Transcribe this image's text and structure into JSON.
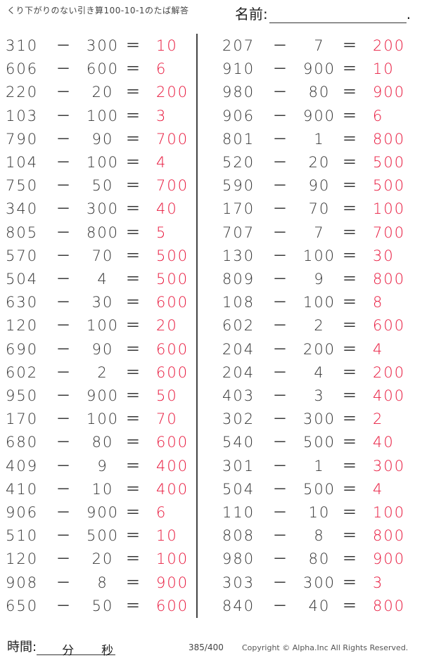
{
  "header": {
    "title": "くり下がりのない引き算100-10-1のたば解答",
    "name_label": "名前:",
    "name_dot": "."
  },
  "operator": "－",
  "equals": "＝",
  "left": [
    [
      "310",
      "300",
      "10"
    ],
    [
      "606",
      "600",
      "6"
    ],
    [
      "220",
      "20",
      "200"
    ],
    [
      "103",
      "100",
      "3"
    ],
    [
      "790",
      "90",
      "700"
    ],
    [
      "104",
      "100",
      "4"
    ],
    [
      "750",
      "50",
      "700"
    ],
    [
      "340",
      "300",
      "40"
    ],
    [
      "805",
      "800",
      "5"
    ],
    [
      "570",
      "70",
      "500"
    ],
    [
      "504",
      "4",
      "500"
    ],
    [
      "630",
      "30",
      "600"
    ],
    [
      "120",
      "100",
      "20"
    ],
    [
      "690",
      "90",
      "600"
    ],
    [
      "602",
      "2",
      "600"
    ],
    [
      "950",
      "900",
      "50"
    ],
    [
      "170",
      "100",
      "70"
    ],
    [
      "680",
      "80",
      "600"
    ],
    [
      "409",
      "9",
      "400"
    ],
    [
      "410",
      "10",
      "400"
    ],
    [
      "906",
      "900",
      "6"
    ],
    [
      "510",
      "500",
      "10"
    ],
    [
      "120",
      "20",
      "100"
    ],
    [
      "908",
      "8",
      "900"
    ],
    [
      "650",
      "50",
      "600"
    ]
  ],
  "right": [
    [
      "207",
      "7",
      "200"
    ],
    [
      "910",
      "900",
      "10"
    ],
    [
      "980",
      "80",
      "900"
    ],
    [
      "906",
      "900",
      "6"
    ],
    [
      "801",
      "1",
      "800"
    ],
    [
      "520",
      "20",
      "500"
    ],
    [
      "590",
      "90",
      "500"
    ],
    [
      "170",
      "70",
      "100"
    ],
    [
      "707",
      "7",
      "700"
    ],
    [
      "130",
      "100",
      "30"
    ],
    [
      "809",
      "9",
      "800"
    ],
    [
      "108",
      "100",
      "8"
    ],
    [
      "602",
      "2",
      "600"
    ],
    [
      "204",
      "200",
      "4"
    ],
    [
      "204",
      "4",
      "200"
    ],
    [
      "403",
      "3",
      "400"
    ],
    [
      "302",
      "300",
      "2"
    ],
    [
      "540",
      "500",
      "40"
    ],
    [
      "301",
      "1",
      "300"
    ],
    [
      "504",
      "500",
      "4"
    ],
    [
      "110",
      "10",
      "100"
    ],
    [
      "808",
      "8",
      "800"
    ],
    [
      "980",
      "80",
      "900"
    ],
    [
      "303",
      "300",
      "3"
    ],
    [
      "840",
      "40",
      "800"
    ]
  ],
  "footer": {
    "time_label": "時間:",
    "minutes": "分",
    "seconds": "秒",
    "page": "385/400",
    "copyright": "Copyright ©  Alpha.Inc All Rights Reserved."
  },
  "colors": {
    "answer": "#e8173c",
    "text": "#333333"
  }
}
